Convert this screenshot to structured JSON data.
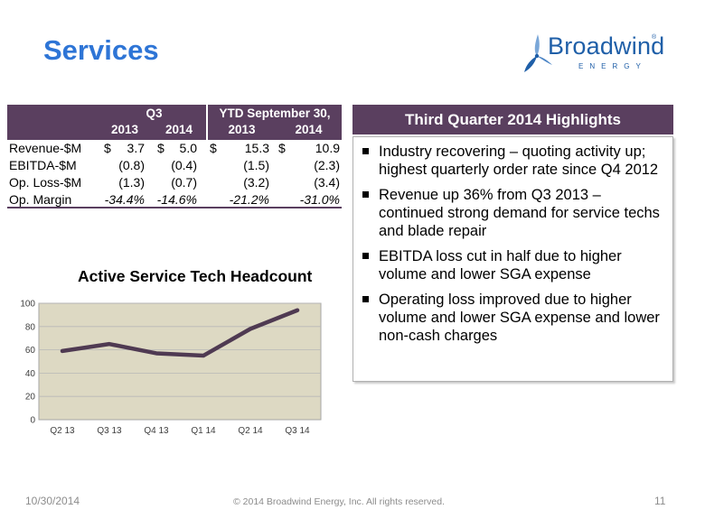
{
  "slide": {
    "title": "Services",
    "logo": {
      "name": "Broadwind",
      "reg": "®",
      "sub": "ENERGY"
    }
  },
  "financials": {
    "group_headers": [
      "Q3",
      "YTD September 30,"
    ],
    "year_headers": [
      "2013",
      "2014",
      "2013",
      "2014"
    ],
    "rows": [
      {
        "label": "Revenue-$M",
        "values": [
          "$",
          "3.7",
          "$",
          "5.0",
          "$",
          "15.3",
          "$",
          "10.9"
        ]
      },
      {
        "label": "EBITDA-$M",
        "values": [
          "",
          "(0.8)",
          "",
          "(0.4)",
          "",
          "(1.5)",
          "",
          "(2.3)"
        ]
      },
      {
        "label": "Op. Loss-$M",
        "values": [
          "",
          "(1.3)",
          "",
          "(0.7)",
          "",
          "(3.2)",
          "",
          "(3.4)"
        ]
      },
      {
        "label": "Op. Margin",
        "values": [
          "",
          "-34.4%",
          "",
          "-14.6%",
          "",
          "-21.2%",
          "",
          "-31.0%"
        ]
      }
    ]
  },
  "highlights": {
    "title": "Third Quarter 2014 Highlights",
    "items": [
      "Industry recovering – quoting activity up; highest quarterly order rate since Q4 2012",
      "Revenue up 36% from Q3 2013 – continued strong demand for service techs and blade repair",
      "EBITDA loss cut in half due to higher volume and lower SGA expense",
      "Operating loss improved due to higher volume and lower SGA expense and lower non-cash charges"
    ]
  },
  "chart_data": {
    "type": "line",
    "title": "Active Service Tech Headcount",
    "categories": [
      "Q2 13",
      "Q3 13",
      "Q4 13",
      "Q1 14",
      "Q2 14",
      "Q3 14"
    ],
    "values": [
      59,
      65,
      57,
      55,
      78,
      94
    ],
    "ylim": [
      0,
      100
    ],
    "yticks": [
      0,
      20,
      40,
      60,
      80,
      100
    ],
    "xlabel": "",
    "ylabel": "",
    "grid": true,
    "line_color": "#4f3a52",
    "plot_bg": "#ddd9c3"
  },
  "footer": {
    "date": "10/30/2014",
    "copyright": "© 2014 Broadwind Energy, Inc. All rights reserved.",
    "page": "11"
  }
}
